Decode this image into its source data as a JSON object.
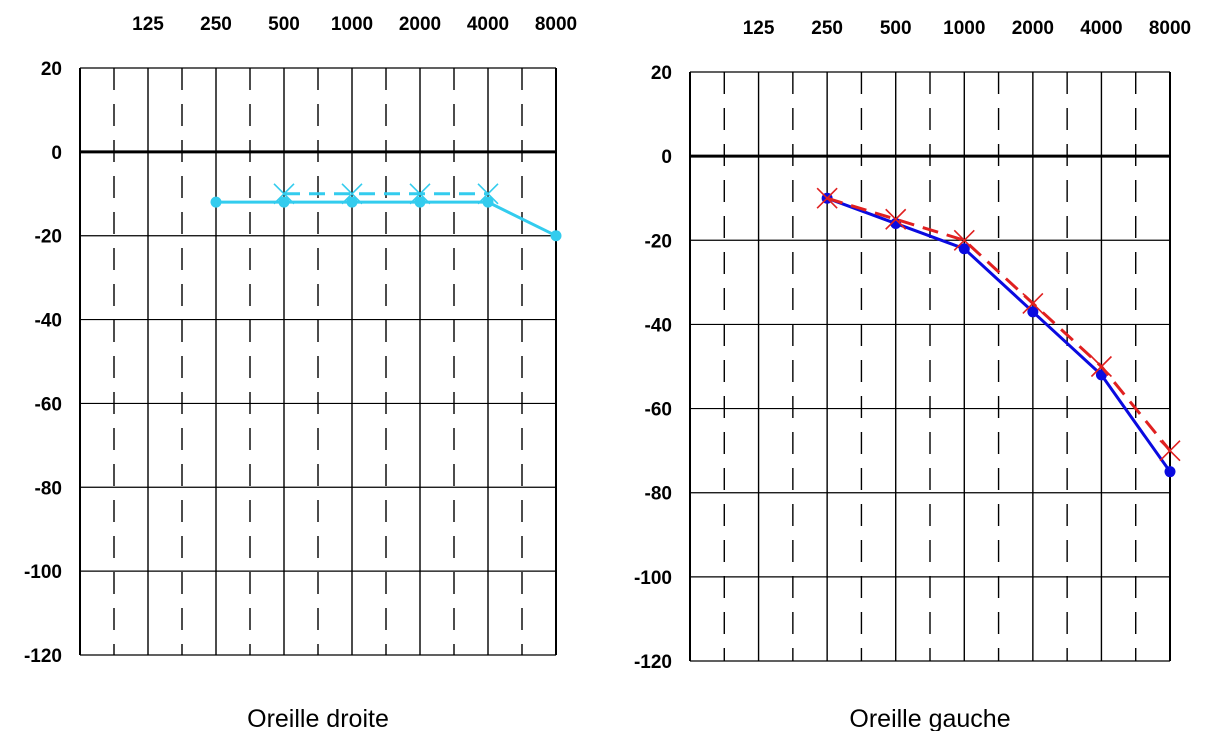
{
  "chart_data": [
    {
      "type": "line",
      "title": "Oreille droite",
      "x_tick_labels": [
        "125",
        "250",
        "500",
        "1000",
        "2000",
        "4000",
        "8000"
      ],
      "y_tick_labels": [
        "20",
        "0",
        "-20",
        "-40",
        "-60",
        "-80",
        "-100",
        "-120"
      ],
      "ylim": [
        -120,
        20
      ],
      "x_scale": "log2 (octaves)",
      "grid": true,
      "series": [
        {
          "marker": "dot",
          "line": "solid",
          "color": "#33ccee",
          "x": [
            250,
            500,
            1000,
            2000,
            4000,
            8000
          ],
          "values": [
            -12,
            -12,
            -12,
            -12,
            -12,
            -20
          ]
        },
        {
          "marker": "cross",
          "line": "dashed",
          "color": "#33ccee",
          "x": [
            500,
            1000,
            2000,
            4000
          ],
          "values": [
            -10,
            -10,
            -10,
            -10
          ]
        }
      ]
    },
    {
      "type": "line",
      "title": "Oreille gauche",
      "x_tick_labels": [
        "125",
        "250",
        "500",
        "1000",
        "2000",
        "4000",
        "8000"
      ],
      "y_tick_labels": [
        "20",
        "0",
        "-20",
        "-40",
        "-60",
        "-80",
        "-100",
        "-120"
      ],
      "ylim": [
        -120,
        20
      ],
      "x_scale": "log2 (octaves)",
      "grid": true,
      "series": [
        {
          "marker": "dot",
          "line": "solid",
          "color": "#0a0ae0",
          "x": [
            250,
            500,
            1000,
            2000,
            4000,
            8000
          ],
          "values": [
            -10,
            -16,
            -22,
            -37,
            -52,
            -75
          ]
        },
        {
          "marker": "cross",
          "line": "dashed",
          "color": "#e02020",
          "x": [
            250,
            500,
            1000,
            2000,
            4000,
            8000
          ],
          "values": [
            -10,
            -15,
            -20,
            -35,
            -50,
            -70
          ]
        }
      ]
    }
  ]
}
